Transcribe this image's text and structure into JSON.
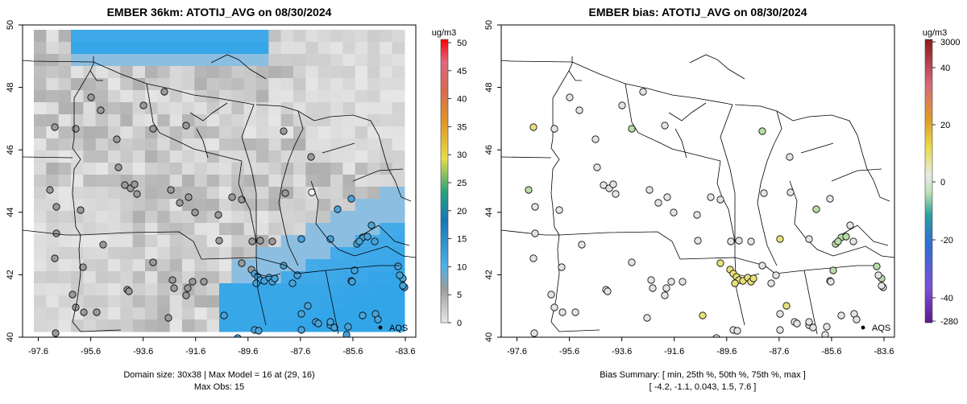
{
  "chart_data": [
    {
      "type": "heatmap",
      "title": "EMBER 36km: ATOTIJ_AVG on 08/30/2024",
      "x_ticks": [
        "-97.6",
        "-95.6",
        "-93.6",
        "-91.6",
        "-89.6",
        "-87.6",
        "-85.6",
        "-83.6"
      ],
      "y_ticks": [
        "40",
        "42",
        "44",
        "46",
        "48",
        "50"
      ],
      "xlim": [
        -98.2,
        -83.2
      ],
      "ylim": [
        40,
        50
      ],
      "colorbar": {
        "unit": "ug/m3",
        "labels": [
          "0",
          "5",
          "10",
          "15",
          "20",
          "25",
          "30",
          "35",
          "40",
          "45",
          "50"
        ],
        "range": [
          0,
          50
        ]
      },
      "annotation": "AQS",
      "caption_lines": [
        "Domain size: 30x38 | Max Model = 16 at (29, 16)",
        "Max Obs: 15"
      ]
    },
    {
      "type": "scatter",
      "title": "EMBER bias: ATOTIJ_AVG on 08/30/2024",
      "x_ticks": [
        "-97.6",
        "-95.6",
        "-93.6",
        "-91.6",
        "-89.6",
        "-87.6",
        "-85.6",
        "-83.6"
      ],
      "y_ticks": [
        "40",
        "42",
        "44",
        "46",
        "48",
        "50"
      ],
      "xlim": [
        -98.2,
        -83.2
      ],
      "ylim": [
        40,
        50
      ],
      "colorbar": {
        "unit": "ug/m3",
        "labels": [
          "3000",
          "40",
          "20",
          "0",
          "-20",
          "-40",
          "-280"
        ]
      },
      "annotation": "AQS",
      "caption_lines": [
        "Bias Summary: [ min, 25th %, 50th %, 75th %, max ]",
        "[ -4.2,  -1.1,  0.043,  1.5,  7.6 ]"
      ]
    }
  ],
  "colors": {
    "obs_blue": "#4aa3d8",
    "obs_gray": "#9a9a9a",
    "bias_yellow": "#e8e07a",
    "bias_green": "#b9dca8",
    "bias_neutral": "#e4e4e4"
  }
}
